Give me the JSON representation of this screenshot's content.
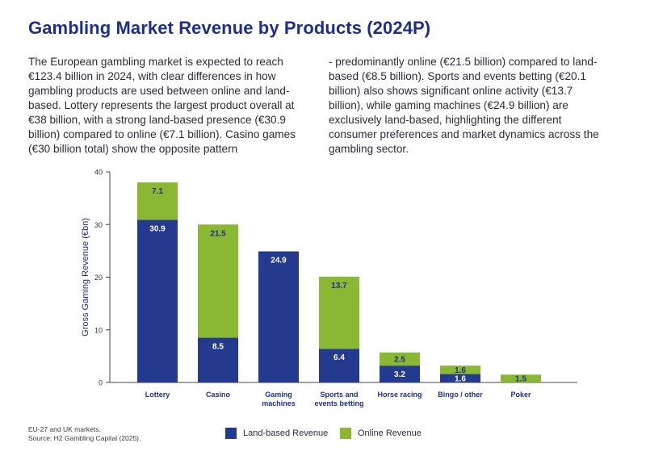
{
  "page": {
    "title": "Gambling Market Revenue by Products (2024P)",
    "intro_left": "The European gambling market is expected to reach €123.4 billion in 2024, with clear differences in how gambling products are used between online and land-based. Lottery represents the largest product overall at €38 billion, with a strong land-based presence (€30.9 billion) compared to online (€7.1 billion). Casino games (€30 billion total) show the opposite pattern",
    "intro_right": "- predominantly online (€21.5 billion) compared to land-based (€8.5 billion). Sports and events betting (€20.1 billion) also shows significant online activity (€13.7 billion), while gaming machines (€24.9 billion) are exclusively land-based, highlighting the different consumer preferences and market dynamics across the gambling sector.",
    "source_line1": "EU-27 and UK markets.",
    "source_line2": "Source: H2 Gambling Capital (2025)."
  },
  "colors": {
    "land": "#243a8f",
    "online": "#8bb832",
    "axis": "#444444",
    "title": "#1e2f8a"
  },
  "chart_data": {
    "type": "bar",
    "stacked": true,
    "title": "",
    "xlabel": "",
    "ylabel": "Gross Gaming Revenue (€bn)",
    "ylim": [
      0,
      40
    ],
    "yticks": [
      "0",
      "10",
      "20",
      "30",
      "40"
    ],
    "categories": [
      [
        "Lottery"
      ],
      [
        "Casino"
      ],
      [
        "Gaming",
        "machines"
      ],
      [
        "Sports and",
        "events betting"
      ],
      [
        "Horse racing"
      ],
      [
        "Bingo / other"
      ],
      [
        "Poker"
      ]
    ],
    "series": [
      {
        "name": "Land-based Revenue",
        "values": [
          30.9,
          8.5,
          24.9,
          6.4,
          3.2,
          1.6,
          0
        ],
        "labels": [
          "30.9",
          "8.5",
          "24.9",
          "6.4",
          "3.2",
          "1.6",
          ""
        ]
      },
      {
        "name": "Online Revenue",
        "values": [
          7.1,
          21.5,
          0,
          13.7,
          2.5,
          1.6,
          1.5
        ],
        "labels": [
          "7.1",
          "21.5",
          "",
          "13.7",
          "2.5",
          "1.6",
          "1.5"
        ]
      }
    ]
  }
}
